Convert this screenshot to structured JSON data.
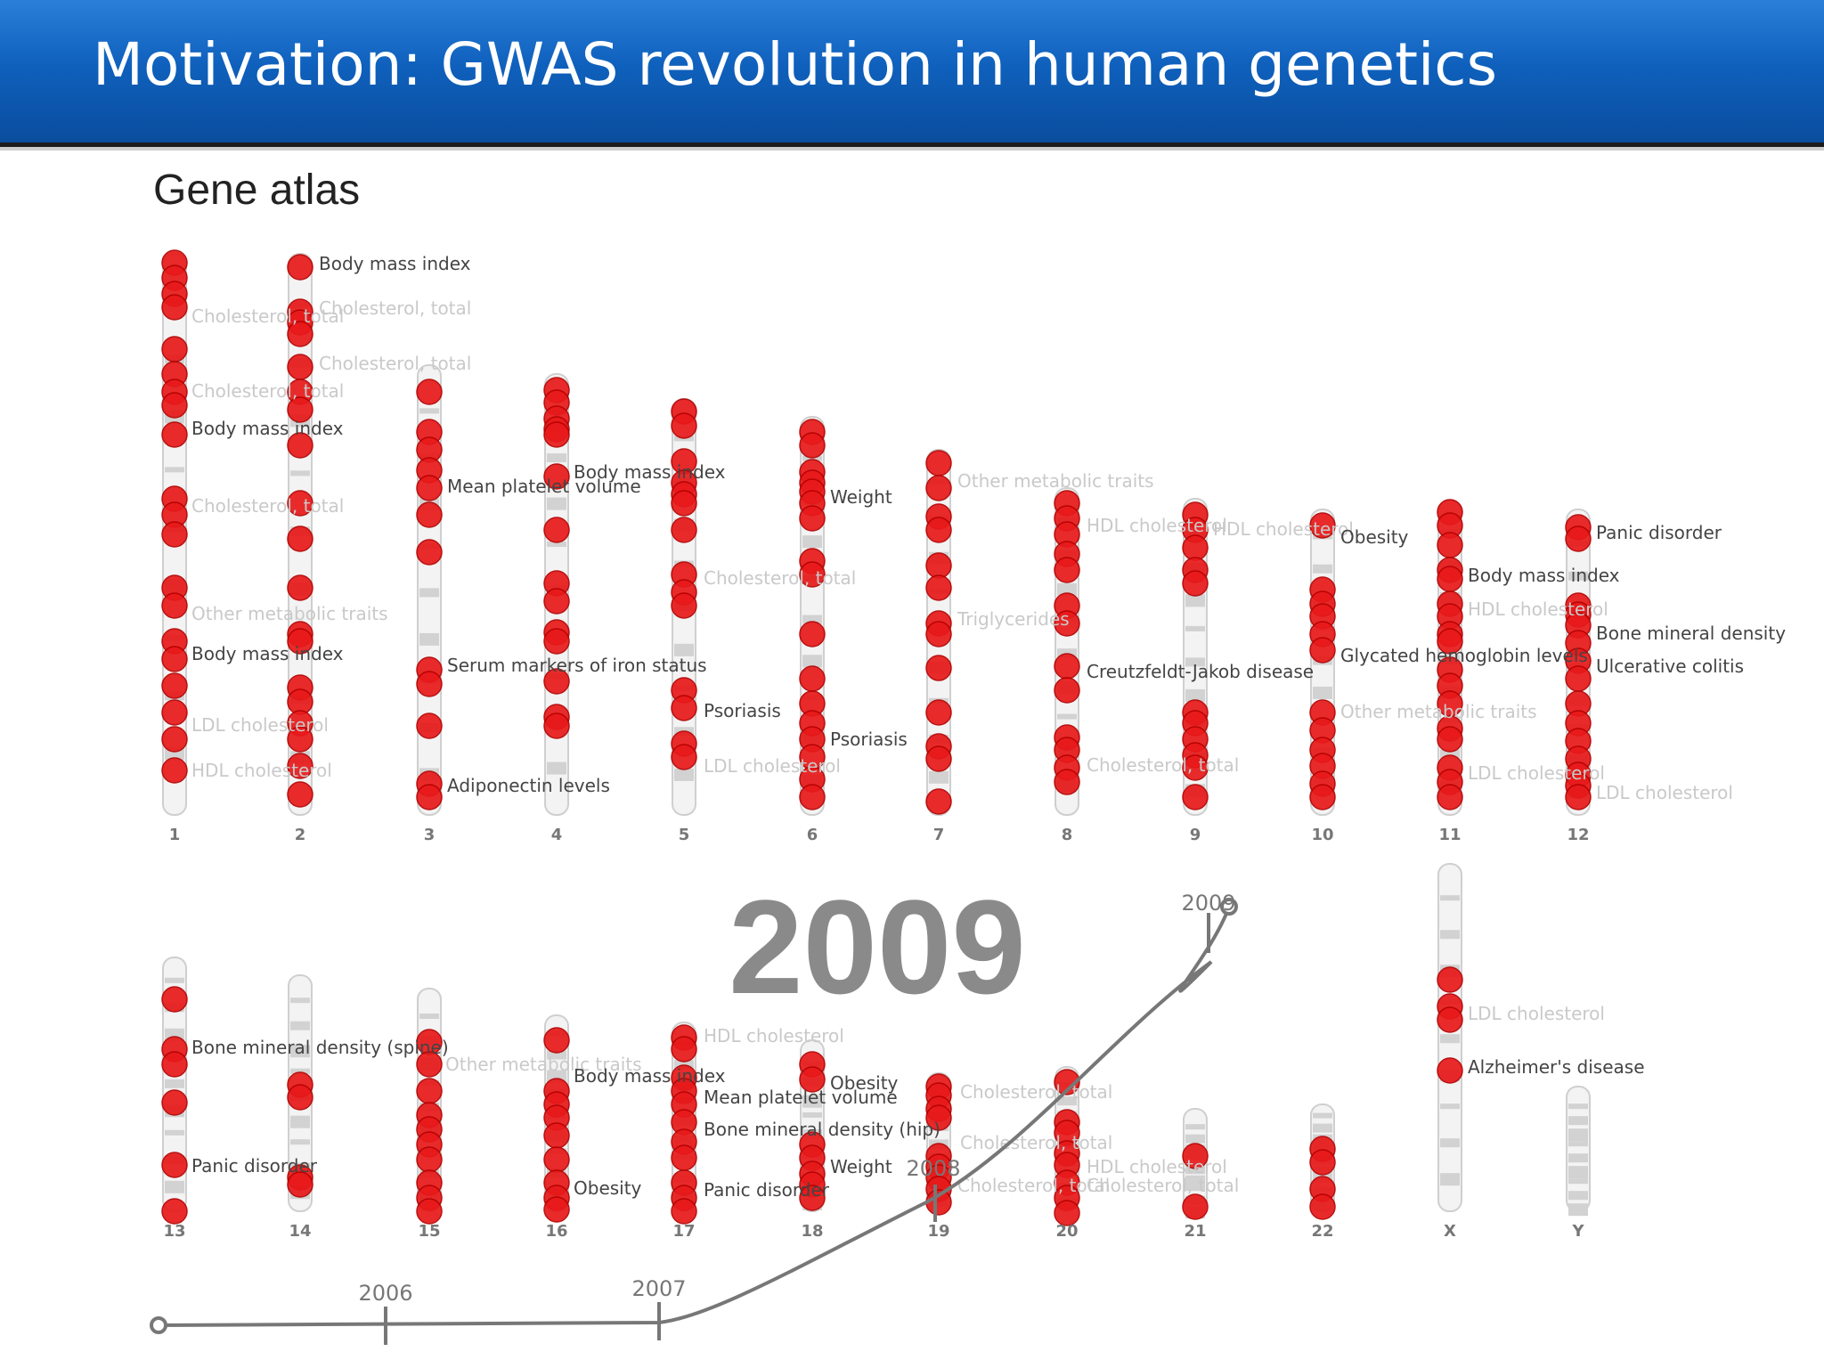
{
  "header": {
    "title": "Motivation: GWAS revolution in human genetics"
  },
  "figure": {
    "subtitle": "Gene atlas",
    "year_label": "2009",
    "colors": {
      "snp": "#e8191a",
      "snp_edge": "#b30000",
      "label_dark": "#444444",
      "label_faint": "#c9c9c9",
      "timeline": "#777777"
    },
    "chromosomes_row1": [
      "1",
      "2",
      "3",
      "4",
      "5",
      "6",
      "7",
      "8",
      "9",
      "10",
      "11",
      "12"
    ],
    "chromosomes_row2": [
      "13",
      "14",
      "15",
      "16",
      "17",
      "18",
      "19",
      "20",
      "21",
      "22",
      "X",
      "Y"
    ],
    "timeline": {
      "years": [
        "2006",
        "2007",
        "2008",
        "2009"
      ]
    },
    "trait_labels": [
      {
        "text": "Body mass index",
        "dark": true
      },
      {
        "text": "Cholesterol, total",
        "dark": false
      },
      {
        "text": "Cholesterol, total",
        "dark": false
      },
      {
        "text": "Cholesterol, total",
        "dark": false
      },
      {
        "text": "Cholesterol, total",
        "dark": false
      },
      {
        "text": "Body mass index",
        "dark": true
      },
      {
        "text": "Cholesterol, total",
        "dark": false
      },
      {
        "text": "Other metabolic traits",
        "dark": false
      },
      {
        "text": "Body mass index",
        "dark": true
      },
      {
        "text": "LDL cholesterol",
        "dark": false
      },
      {
        "text": "HDL cholesterol",
        "dark": false
      },
      {
        "text": "Mean platelet volume",
        "dark": true
      },
      {
        "text": "Serum markers of iron status",
        "dark": true
      },
      {
        "text": "Adiponectin levels",
        "dark": true
      },
      {
        "text": "Body mass index",
        "dark": true
      },
      {
        "text": "Cholesterol, total",
        "dark": false
      },
      {
        "text": "Psoriasis",
        "dark": true
      },
      {
        "text": "LDL cholesterol",
        "dark": false
      },
      {
        "text": "Weight",
        "dark": true
      },
      {
        "text": "Psoriasis",
        "dark": true
      },
      {
        "text": "Other metabolic traits",
        "dark": false
      },
      {
        "text": "Triglycerides",
        "dark": false
      },
      {
        "text": "HDL cholesterol",
        "dark": false
      },
      {
        "text": "Creutzfeldt-Jakob disease",
        "dark": true
      },
      {
        "text": "Cholesterol, total",
        "dark": false
      },
      {
        "text": "HDL cholesterol",
        "dark": false
      },
      {
        "text": "Obesity",
        "dark": true
      },
      {
        "text": "Glycated hemoglobin levels",
        "dark": true
      },
      {
        "text": "Other metabolic traits",
        "dark": false
      },
      {
        "text": "Body mass index",
        "dark": true
      },
      {
        "text": "HDL cholesterol",
        "dark": false
      },
      {
        "text": "LDL cholesterol",
        "dark": false
      },
      {
        "text": "Panic disorder",
        "dark": true
      },
      {
        "text": "Bone mineral density",
        "dark": true
      },
      {
        "text": "Ulcerative colitis",
        "dark": true
      },
      {
        "text": "LDL cholesterol",
        "dark": false
      },
      {
        "text": "Bone mineral density (spine)",
        "dark": true
      },
      {
        "text": "Panic disorder",
        "dark": true
      },
      {
        "text": "Other metabolic traits",
        "dark": false
      },
      {
        "text": "Body mass index",
        "dark": true
      },
      {
        "text": "Obesity",
        "dark": true
      },
      {
        "text": "HDL cholesterol",
        "dark": false
      },
      {
        "text": "Mean platelet volume",
        "dark": true
      },
      {
        "text": "Bone mineral density (hip)",
        "dark": true
      },
      {
        "text": "Panic disorder",
        "dark": true
      },
      {
        "text": "Obesity",
        "dark": true
      },
      {
        "text": "Weight",
        "dark": true
      },
      {
        "text": "Cholesterol, total",
        "dark": false
      },
      {
        "text": "Cholesterol, total",
        "dark": false
      },
      {
        "text": "Cholesterol, total",
        "dark": false
      },
      {
        "text": "HDL cholesterol",
        "dark": false
      },
      {
        "text": "Cholesterol, total",
        "dark": false
      },
      {
        "text": "LDL cholesterol",
        "dark": false
      },
      {
        "text": "Alzheimer's disease",
        "dark": true
      }
    ]
  }
}
